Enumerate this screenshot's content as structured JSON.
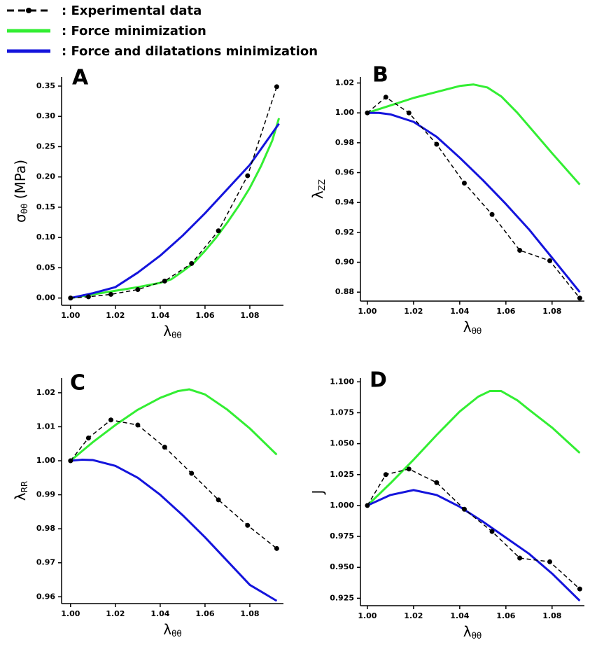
{
  "chart_data": [
    {
      "type": "line",
      "panel_label": "A",
      "x_label": "λ",
      "x_label_sub": "θθ",
      "y_label": "σ",
      "y_label_sub": "θθ",
      "y_label_suffix": " (MPa)",
      "xlim": [
        0.996,
        1.095
      ],
      "xticks": [
        {
          "value": 1.0,
          "label": "1.00"
        },
        1.02,
        1.04,
        1.06,
        1.08
      ],
      "ylim": [
        -0.012,
        0.365
      ],
      "yticks": [
        {
          "value": 0,
          "label": "0.00"
        },
        0.05,
        {
          "value": 0.1,
          "label": "0.10"
        },
        0.15,
        {
          "value": 0.2,
          "label": "0.20"
        },
        0.25,
        {
          "value": 0.3,
          "label": "0.30"
        },
        0.35
      ],
      "series": [
        {
          "name": ": Experimental data",
          "color": "#000000",
          "dashed": true,
          "markers": true,
          "x": [
            1.0,
            1.008,
            1.018,
            1.03,
            1.042,
            1.054,
            1.066,
            1.079,
            1.092
          ],
          "values": [
            0,
            0.002,
            0.006,
            0.014,
            0.028,
            0.057,
            0.111,
            0.202,
            0.349
          ]
        },
        {
          "name": ": Force minimization",
          "color": "#33ee33",
          "dashed": false,
          "markers": false,
          "x": [
            1.0,
            1.01,
            1.02,
            1.03,
            1.04,
            1.045,
            1.05,
            1.055,
            1.06,
            1.065,
            1.07,
            1.075,
            1.08,
            1.085,
            1.09,
            1.093
          ],
          "values": [
            0,
            0.006,
            0.012,
            0.018,
            0.025,
            0.031,
            0.044,
            0.058,
            0.078,
            0.1,
            0.125,
            0.152,
            0.182,
            0.218,
            0.26,
            0.297
          ]
        },
        {
          "name": ": Force and dilatations minimization",
          "color": "#1414dc",
          "dashed": false,
          "markers": false,
          "x": [
            1.0,
            1.01,
            1.02,
            1.03,
            1.04,
            1.05,
            1.06,
            1.07,
            1.08,
            1.093
          ],
          "values": [
            0,
            0.008,
            0.018,
            0.042,
            0.07,
            0.103,
            0.14,
            0.18,
            0.22,
            0.288
          ]
        }
      ]
    },
    {
      "type": "line",
      "panel_label": "B",
      "x_label": "λ",
      "x_label_sub": "θθ",
      "y_label": "λ",
      "y_label_sub": "ZZ",
      "xlim": [
        0.997,
        1.094
      ],
      "xticks": [
        {
          "value": 1.0,
          "label": "1.00"
        },
        1.02,
        1.04,
        1.06,
        1.08
      ],
      "ylim": [
        0.874,
        1.024
      ],
      "yticks": [
        0.88,
        {
          "value": 0.9,
          "label": "0.90"
        },
        0.92,
        0.94,
        0.96,
        0.98,
        {
          "value": 1.0,
          "label": "1.00"
        },
        1.02
      ],
      "series": [
        {
          "color": "#000000",
          "dashed": true,
          "markers": true,
          "x": [
            1.0,
            1.008,
            1.018,
            1.03,
            1.042,
            1.054,
            1.066,
            1.079,
            1.092
          ],
          "values": [
            1.0,
            1.0105,
            1.0,
            0.979,
            0.953,
            0.932,
            0.908,
            0.901,
            0.876
          ]
        },
        {
          "color": "#33ee33",
          "dashed": false,
          "markers": false,
          "x": [
            1.0,
            1.01,
            1.02,
            1.03,
            1.04,
            1.046,
            1.052,
            1.058,
            1.065,
            1.07,
            1.08,
            1.092
          ],
          "values": [
            1.0,
            1.005,
            1.01,
            1.014,
            1.018,
            1.019,
            1.017,
            1.011,
            1.0,
            0.991,
            0.973,
            0.952
          ]
        },
        {
          "color": "#1414dc",
          "dashed": false,
          "markers": false,
          "x": [
            1.0,
            1.005,
            1.01,
            1.02,
            1.03,
            1.04,
            1.05,
            1.06,
            1.07,
            1.08,
            1.092
          ],
          "values": [
            1.0,
            1.0,
            0.999,
            0.994,
            0.984,
            0.97,
            0.955,
            0.939,
            0.922,
            0.903,
            0.88
          ]
        }
      ]
    },
    {
      "type": "line",
      "panel_label": "C",
      "x_label": "λ",
      "x_label_sub": "θθ",
      "y_label": "λ",
      "y_label_sub": "RR",
      "xlim": [
        0.996,
        1.095
      ],
      "xticks": [
        {
          "value": 1.0,
          "label": "1.00"
        },
        1.02,
        1.04,
        1.06,
        1.08
      ],
      "ylim": [
        0.958,
        1.0243
      ],
      "yticks": [
        0.96,
        0.97,
        0.98,
        0.99,
        {
          "value": 1.0,
          "label": "1.00"
        },
        1.01,
        1.02
      ],
      "series": [
        {
          "color": "#000000",
          "dashed": true,
          "markers": true,
          "x": [
            1.0,
            1.008,
            1.018,
            1.03,
            1.042,
            1.054,
            1.066,
            1.079,
            1.092
          ],
          "values": [
            1.0,
            1.0067,
            1.012,
            1.0105,
            1.004,
            0.9963,
            0.9885,
            0.981,
            0.9742
          ]
        },
        {
          "color": "#33ee33",
          "dashed": false,
          "markers": false,
          "x": [
            1.0,
            1.01,
            1.02,
            1.03,
            1.04,
            1.048,
            1.053,
            1.06,
            1.07,
            1.08,
            1.092
          ],
          "values": [
            1.0,
            1.0055,
            1.0105,
            1.015,
            1.0185,
            1.0205,
            1.021,
            1.0195,
            1.015,
            1.0095,
            1.0018
          ]
        },
        {
          "color": "#1414dc",
          "dashed": false,
          "markers": false,
          "x": [
            1.0,
            1.005,
            1.01,
            1.02,
            1.03,
            1.04,
            1.05,
            1.06,
            1.07,
            1.08,
            1.092
          ],
          "values": [
            1.0,
            1.0003,
            1.0002,
            0.9985,
            0.995,
            0.99,
            0.984,
            0.9775,
            0.9705,
            0.9635,
            0.9588
          ]
        }
      ]
    },
    {
      "type": "line",
      "panel_label": "D",
      "x_label": "λ",
      "x_label_sub": "θθ",
      "y_label": "J",
      "xlim": [
        0.997,
        1.094
      ],
      "xticks": [
        {
          "value": 1.0,
          "label": "1.00"
        },
        1.02,
        1.04,
        1.06,
        1.08
      ],
      "ylim": [
        0.919,
        1.103
      ],
      "yticks": [
        {
          "value": 0.925,
          "label": "0.925"
        },
        {
          "value": 0.95,
          "label": "0.950"
        },
        0.975,
        {
          "value": 1.0,
          "label": "1.000"
        },
        1.025,
        {
          "value": 1.05,
          "label": "1.050"
        },
        1.075,
        {
          "value": 1.1,
          "label": "1.100"
        }
      ],
      "series": [
        {
          "color": "#000000",
          "dashed": true,
          "markers": true,
          "x": [
            1.0,
            1.008,
            1.018,
            1.03,
            1.042,
            1.054,
            1.066,
            1.079,
            1.092
          ],
          "values": [
            1.0,
            1.025,
            1.0295,
            1.0185,
            0.997,
            0.979,
            0.9575,
            0.9545,
            0.9325
          ]
        },
        {
          "color": "#33ee33",
          "dashed": false,
          "markers": false,
          "x": [
            1.0,
            1.01,
            1.02,
            1.03,
            1.04,
            1.048,
            1.053,
            1.058,
            1.065,
            1.07,
            1.08,
            1.092
          ],
          "values": [
            1.0,
            1.018,
            1.037,
            1.057,
            1.076,
            1.088,
            1.0925,
            1.0925,
            1.085,
            1.0775,
            1.063,
            1.0425
          ]
        },
        {
          "color": "#1414dc",
          "dashed": false,
          "markers": false,
          "x": [
            1.0,
            1.01,
            1.02,
            1.03,
            1.04,
            1.05,
            1.06,
            1.07,
            1.08,
            1.092
          ],
          "values": [
            1.0,
            1.0085,
            1.0125,
            1.0085,
            0.999,
            0.987,
            0.974,
            0.961,
            0.945,
            0.923
          ]
        }
      ]
    }
  ]
}
